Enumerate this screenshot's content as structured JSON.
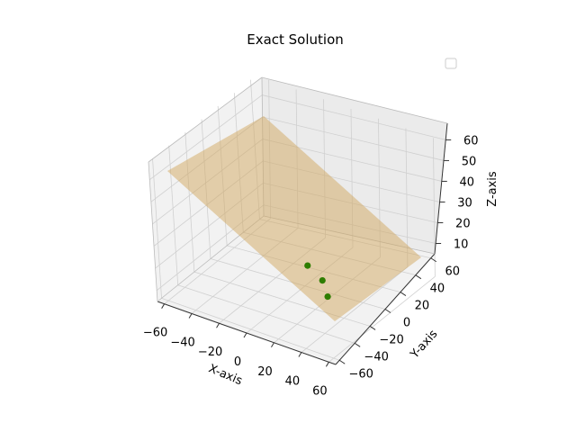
{
  "chart_data": {
    "type": "scatter",
    "title": "Exact Solution",
    "xlabel": "X-axis",
    "ylabel": "Y-axis",
    "zlabel": "Z-axis",
    "x_ticks": [
      "−60",
      "−40",
      "−20",
      "0",
      "20",
      "40",
      "60"
    ],
    "y_ticks": [
      "−60",
      "−40",
      "−20",
      "0",
      "20",
      "40",
      "60"
    ],
    "z_ticks": [
      "10",
      "20",
      "30",
      "40",
      "50",
      "60"
    ],
    "xlim": [
      -65,
      65
    ],
    "ylim": [
      -65,
      65
    ],
    "zlim": [
      5,
      68
    ],
    "grid": true,
    "legend": {
      "placement": "top-right",
      "entries": []
    },
    "plane": {
      "color": "#d2a860",
      "alpha": 0.5
    },
    "points": {
      "color": "#2e7d00",
      "values": [
        {
          "x": 9,
          "y": -3,
          "z": 19
        },
        {
          "x": 20,
          "y": -4,
          "z": 15
        },
        {
          "x": 27,
          "y": -10,
          "z": 11
        }
      ]
    }
  }
}
